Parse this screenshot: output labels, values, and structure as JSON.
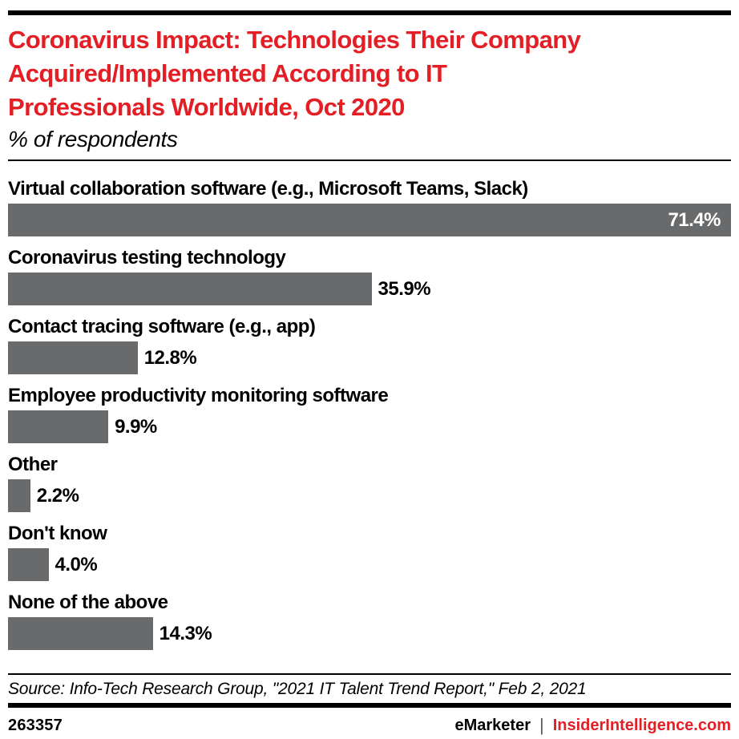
{
  "colors": {
    "accent_red": "#e41e25",
    "bar_gray": "#696a6c",
    "rule_black": "#000000",
    "value_label_inside": "#ffffff",
    "value_label_outside": "#000000"
  },
  "header": {
    "title": "Coronavirus Impact: Technologies Their Company Acquired/Implemented According to IT Professionals Worldwide, Oct 2020",
    "title_lines": [
      "Coronavirus Impact: Technologies Their Company",
      "Acquired/Implemented According to IT",
      "Professionals Worldwide, Oct 2020"
    ],
    "subtitle": "% of respondents"
  },
  "chart_data": {
    "type": "bar",
    "orientation": "horizontal",
    "title": "Coronavirus Impact: Technologies Their Company Acquired/Implemented According to IT Professionals Worldwide, Oct 2020",
    "subtitle": "% of respondents",
    "xlabel": "",
    "ylabel": "",
    "axis_visible": false,
    "grid": false,
    "legend": false,
    "xlim": [
      0,
      71.4
    ],
    "bar_color": "#696a6c",
    "categories": [
      "Virtual collaboration software (e.g., Microsoft Teams, Slack)",
      "Coronavirus testing technology",
      "Contact tracing software (e.g., app)",
      "Employee productivity monitoring software",
      "Other",
      "Don't know",
      "None of the above"
    ],
    "values": [
      71.4,
      35.9,
      12.8,
      9.9,
      2.2,
      4.0,
      14.3
    ],
    "value_labels": [
      "71.4%",
      "35.9%",
      "12.8%",
      "9.9%",
      "2.2%",
      "4.0%",
      "14.3%"
    ]
  },
  "footer": {
    "source": "Source: Info-Tech Research Group, \"2021 IT Talent Trend Report,\" Feb 2, 2021",
    "chart_id": "263357",
    "brand": "eMarketer",
    "separator": "|",
    "site": "InsiderIntelligence.com"
  }
}
